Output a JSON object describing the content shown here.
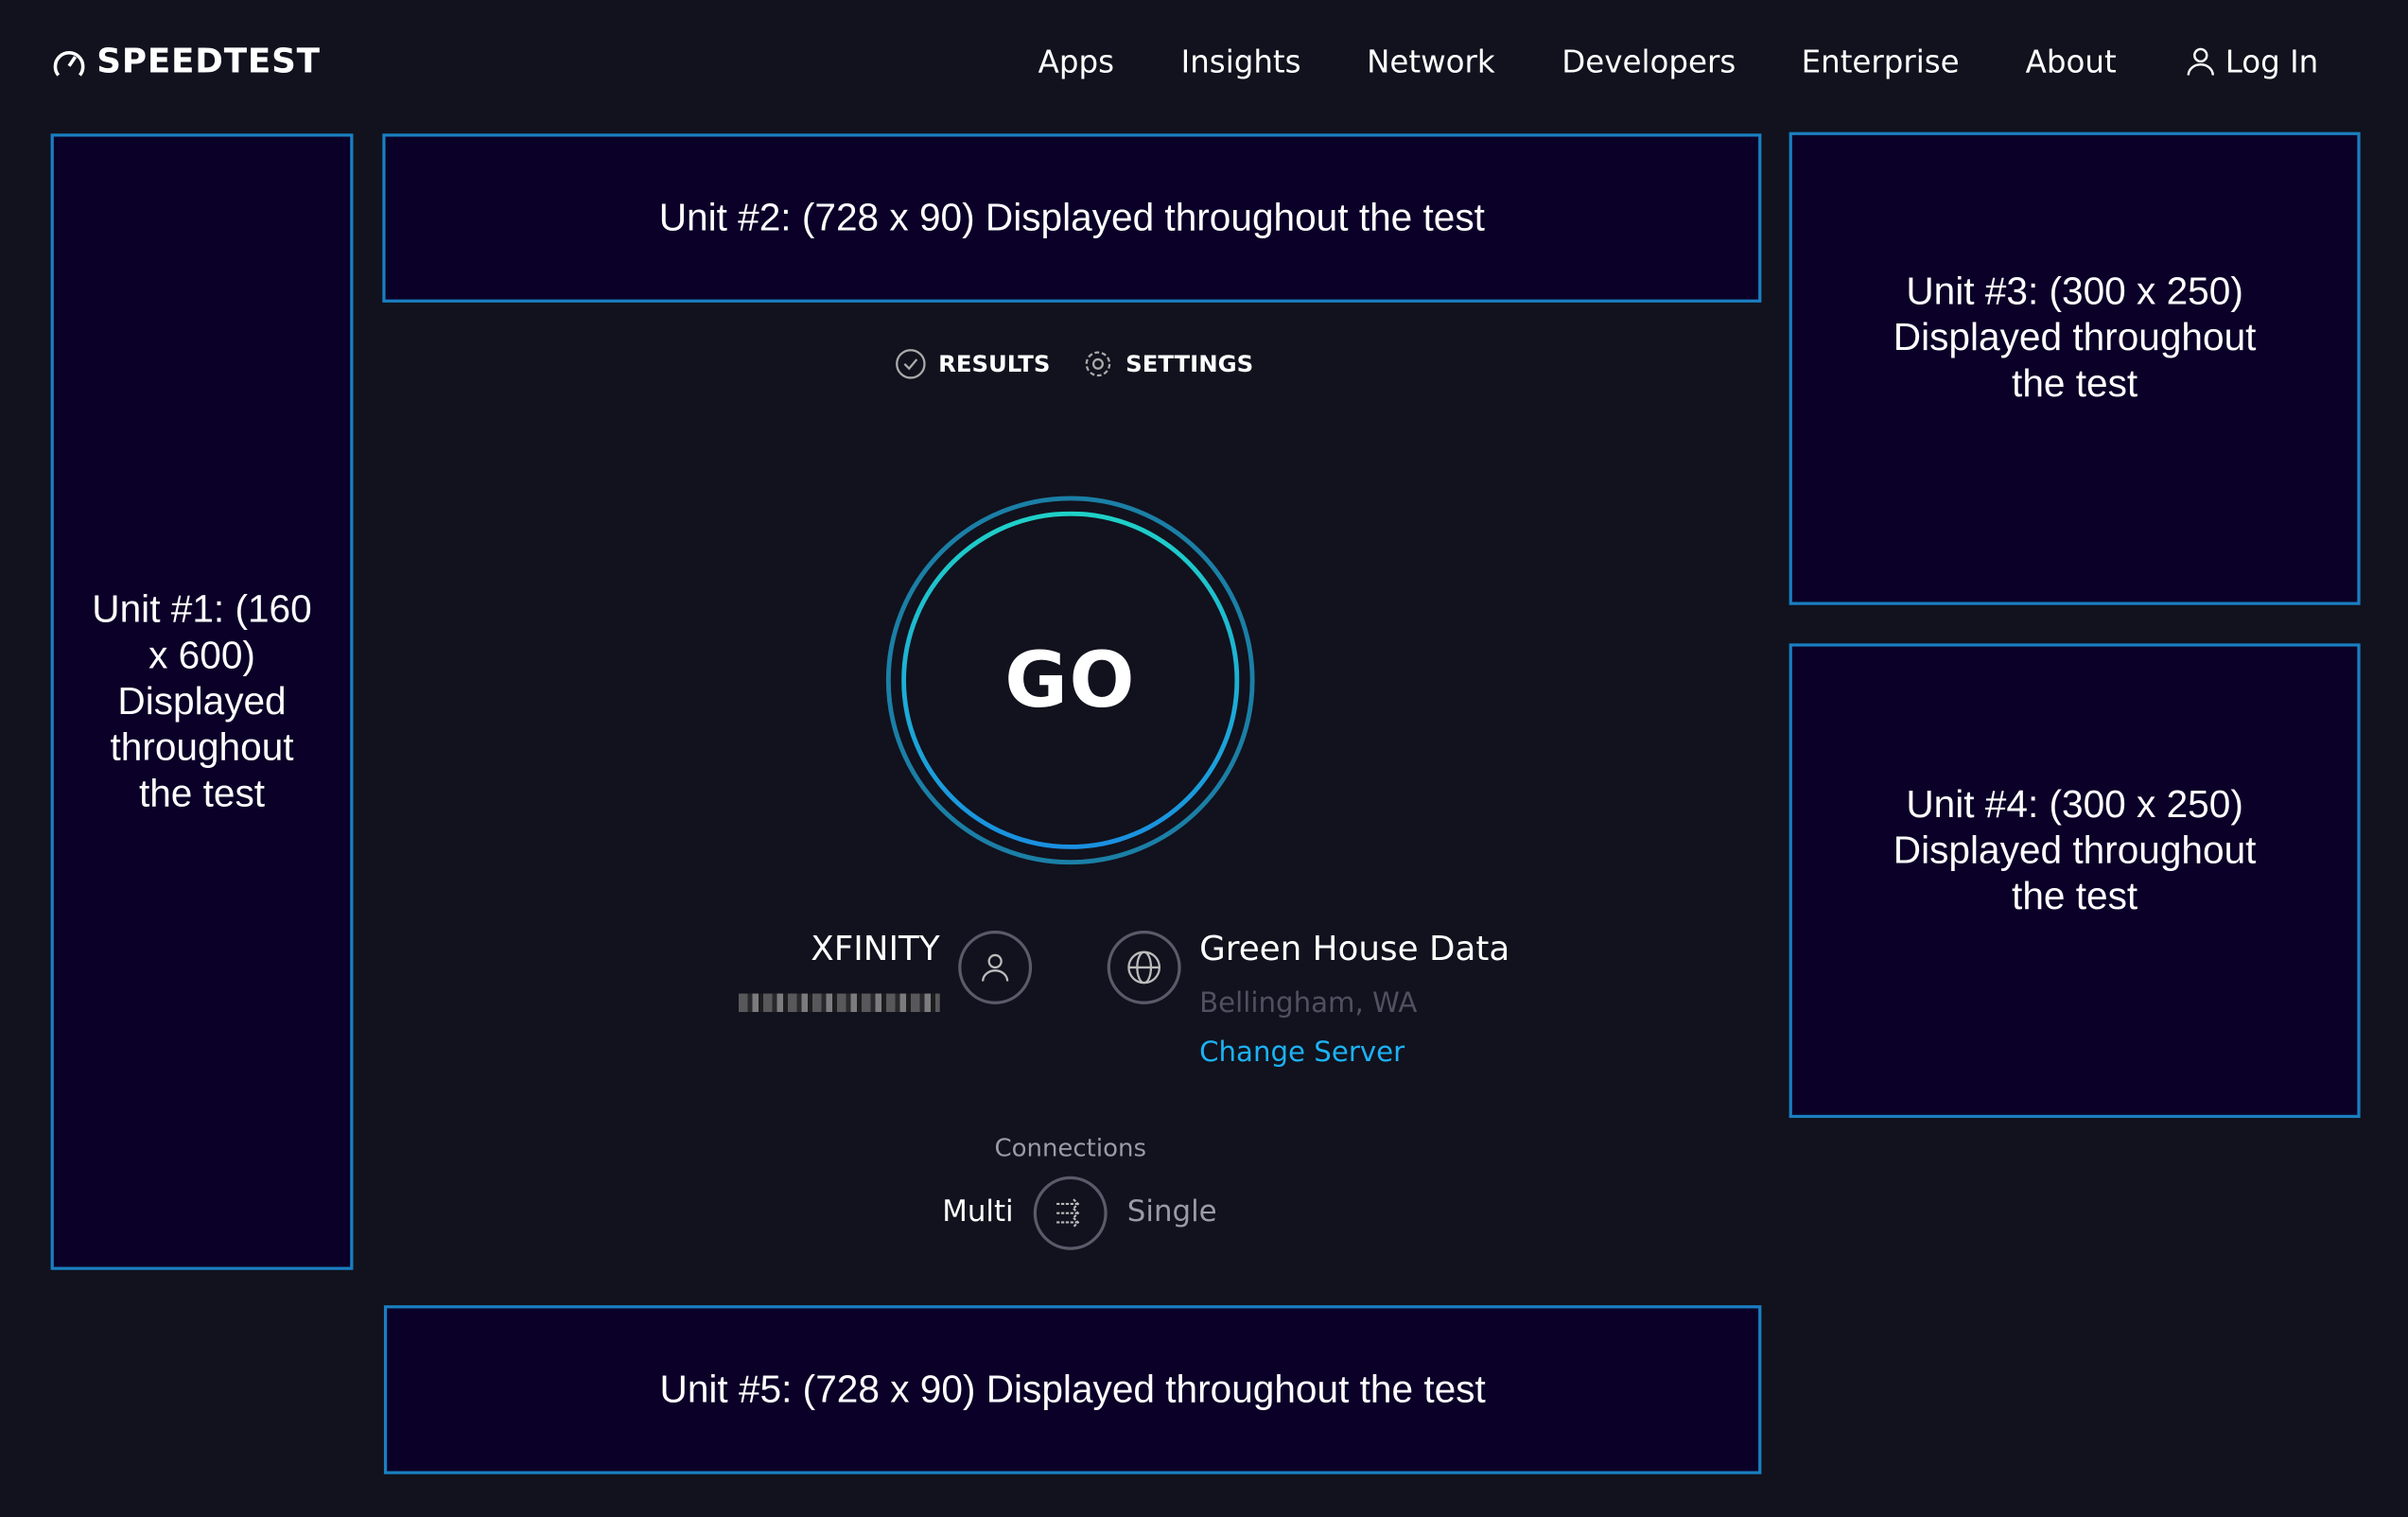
{
  "header": {
    "logo": "SPEEDTEST",
    "nav": [
      "Apps",
      "Insights",
      "Network",
      "Developers",
      "Enterprise",
      "About"
    ],
    "login": "Log In"
  },
  "ads": {
    "unit1": "Unit #1: (160 x 600) Displayed throughout the test",
    "unit2": "Unit #2: (728 x 90) Displayed throughout the test",
    "unit3": "Unit #3: (300 x 250) Displayed throughout the test",
    "unit4": "Unit #4: (300 x 250) Displayed throughout the test",
    "unit5": "Unit #5: (728 x 90) Displayed throughout the test"
  },
  "tabs": {
    "results": "RESULTS",
    "settings": "SETTINGS"
  },
  "go": "GO",
  "isp": {
    "name": "XFINITY",
    "icon": "user-icon"
  },
  "server": {
    "name": "Green House Data",
    "location": "Bellingham, WA",
    "change": "Change Server",
    "icon": "globe-icon"
  },
  "connections": {
    "label": "Connections",
    "multi": "Multi",
    "single": "Single",
    "icon": "connections-icon"
  },
  "colors": {
    "background": "#11121d",
    "ad_bg": "#0b0028",
    "ad_border": "#1a7fc0",
    "link": "#1cb2f5",
    "go_ring": "#1fd1c8"
  }
}
